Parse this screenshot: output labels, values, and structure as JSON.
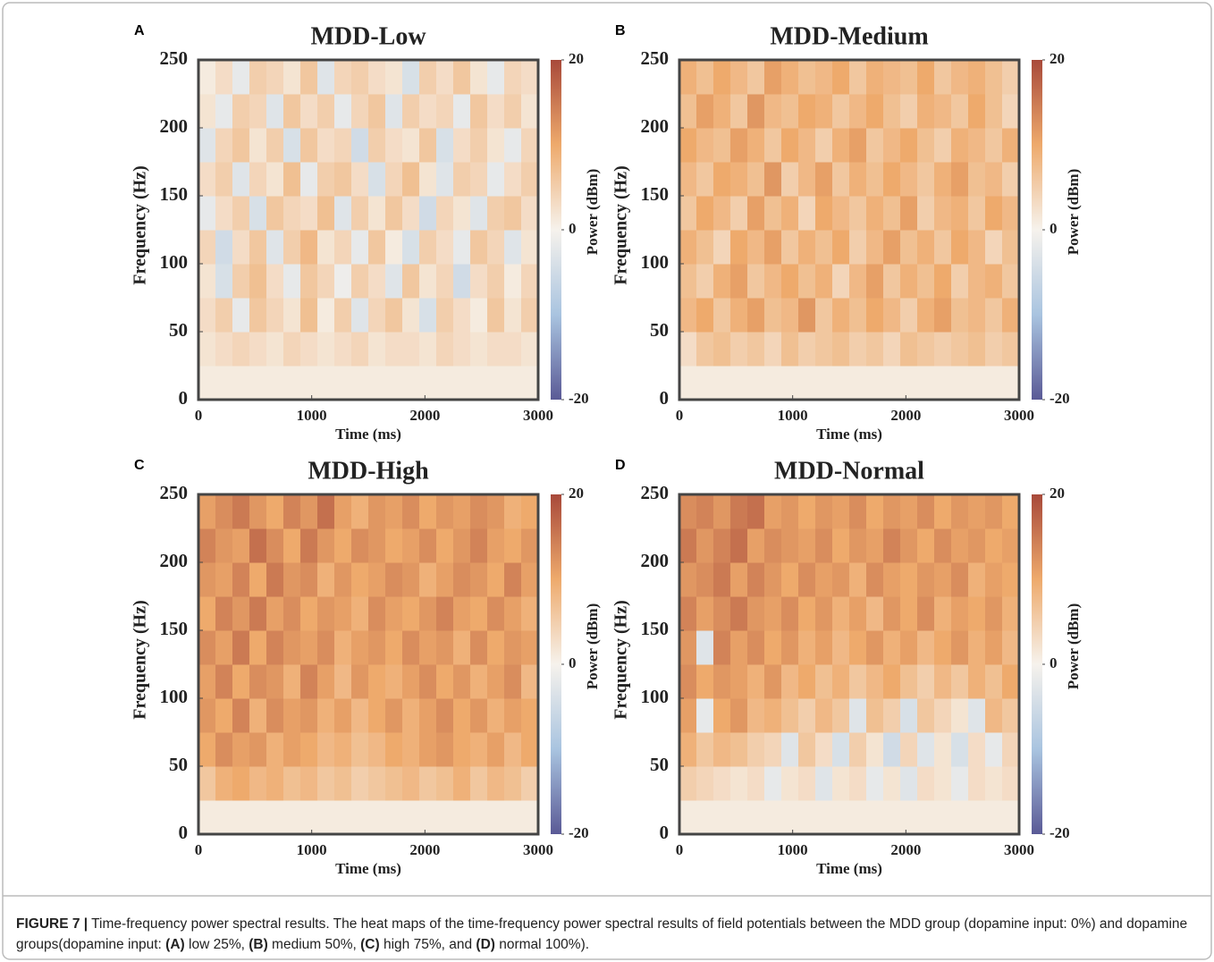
{
  "chart_data": [
    {
      "type": "heatmap",
      "panel": "A",
      "title": "MDD-Low",
      "x_label": "Time (ms)",
      "y_label": "Frequency (Hz)",
      "colorbar_label": "Power (dBm)",
      "xlim": [
        0,
        3000
      ],
      "ylim": [
        0,
        250
      ],
      "xticks": [
        0,
        1000,
        2000,
        3000
      ],
      "yticks": [
        0,
        50,
        100,
        150,
        200,
        250
      ],
      "clim": [
        -20,
        20
      ],
      "cticks": [
        -20,
        0,
        20
      ],
      "colormap": [
        "#5a5a96",
        "#a9c4e0",
        "#f6f2ec",
        "#eeaa6c",
        "#a8493a"
      ],
      "values": [
        [
          1,
          1,
          1,
          1,
          1,
          1,
          1,
          1,
          1,
          1,
          1,
          1,
          1,
          1,
          1,
          1,
          1,
          1,
          1,
          1
        ],
        [
          2,
          3,
          4,
          3,
          2,
          4,
          3,
          2,
          3,
          4,
          2,
          3,
          3,
          2,
          4,
          3,
          2,
          3,
          3,
          2
        ],
        [
          3,
          5,
          -2,
          6,
          4,
          2,
          7,
          1,
          5,
          -3,
          4,
          6,
          2,
          -4,
          5,
          3,
          1,
          6,
          2,
          5
        ],
        [
          2,
          -4,
          5,
          7,
          3,
          -2,
          6,
          4,
          -1,
          5,
          3,
          -3,
          6,
          2,
          4,
          -5,
          3,
          5,
          1,
          4
        ],
        [
          4,
          -5,
          3,
          6,
          -3,
          5,
          8,
          2,
          4,
          -2,
          6,
          1,
          -4,
          5,
          3,
          -2,
          6,
          4,
          -3,
          2
        ],
        [
          -2,
          3,
          5,
          -4,
          6,
          4,
          3,
          7,
          -3,
          5,
          2,
          6,
          3,
          -5,
          4,
          2,
          -3,
          5,
          6,
          3
        ],
        [
          3,
          5,
          -3,
          4,
          2,
          7,
          -2,
          5,
          6,
          3,
          -4,
          4,
          7,
          2,
          -3,
          5,
          4,
          -2,
          3,
          5
        ],
        [
          -3,
          4,
          6,
          2,
          5,
          -4,
          6,
          3,
          4,
          -5,
          5,
          3,
          2,
          6,
          -4,
          3,
          5,
          2,
          -2,
          4
        ],
        [
          2,
          -2,
          5,
          4,
          -3,
          6,
          3,
          5,
          -2,
          4,
          6,
          -3,
          5,
          3,
          4,
          -2,
          6,
          3,
          5,
          2
        ],
        [
          1,
          3,
          -2,
          5,
          4,
          2,
          6,
          -3,
          4,
          5,
          3,
          2,
          -4,
          5,
          3,
          6,
          2,
          -2,
          4,
          3
        ]
      ]
    },
    {
      "type": "heatmap",
      "panel": "B",
      "title": "MDD-Medium",
      "x_label": "Time (ms)",
      "y_label": "Frequency (Hz)",
      "colorbar_label": "Power (dBm)",
      "xlim": [
        0,
        3000
      ],
      "ylim": [
        0,
        250
      ],
      "xticks": [
        0,
        1000,
        2000,
        3000
      ],
      "yticks": [
        0,
        50,
        100,
        150,
        200,
        250
      ],
      "clim": [
        -20,
        20
      ],
      "cticks": [
        -20,
        0,
        20
      ],
      "colormap": [
        "#5a5a96",
        "#a9c4e0",
        "#f6f2ec",
        "#eeaa6c",
        "#a8493a"
      ],
      "values": [
        [
          1,
          1,
          1,
          1,
          1,
          1,
          1,
          1,
          1,
          1,
          1,
          1,
          1,
          1,
          1,
          1,
          1,
          1,
          1,
          1
        ],
        [
          3,
          6,
          7,
          5,
          6,
          4,
          7,
          5,
          6,
          7,
          5,
          6,
          4,
          7,
          6,
          5,
          6,
          7,
          5,
          6
        ],
        [
          8,
          10,
          6,
          9,
          11,
          7,
          8,
          12,
          6,
          9,
          7,
          10,
          8,
          5,
          9,
          11,
          7,
          8,
          6,
          9
        ],
        [
          7,
          5,
          9,
          11,
          6,
          8,
          10,
          7,
          9,
          4,
          8,
          11,
          6,
          9,
          7,
          10,
          5,
          8,
          9,
          6
        ],
        [
          9,
          7,
          4,
          10,
          8,
          11,
          6,
          9,
          7,
          10,
          5,
          8,
          11,
          7,
          9,
          6,
          10,
          8,
          4,
          7
        ],
        [
          6,
          10,
          8,
          5,
          11,
          7,
          9,
          4,
          10,
          8,
          6,
          9,
          7,
          11,
          5,
          8,
          9,
          6,
          10,
          8
        ],
        [
          8,
          6,
          10,
          9,
          7,
          12,
          5,
          8,
          11,
          6,
          9,
          7,
          10,
          8,
          6,
          9,
          11,
          7,
          8,
          5
        ],
        [
          10,
          8,
          7,
          11,
          9,
          6,
          10,
          8,
          5,
          9,
          11,
          6,
          8,
          10,
          7,
          5,
          9,
          8,
          6,
          9
        ],
        [
          7,
          11,
          9,
          6,
          12,
          8,
          7,
          10,
          9,
          6,
          8,
          10,
          7,
          5,
          9,
          8,
          6,
          10,
          7,
          4
        ],
        [
          9,
          7,
          10,
          8,
          6,
          11,
          9,
          7,
          8,
          10,
          6,
          9,
          8,
          7,
          10,
          6,
          8,
          9,
          7,
          5
        ]
      ]
    },
    {
      "type": "heatmap",
      "panel": "C",
      "title": "MDD-High",
      "x_label": "Time (ms)",
      "y_label": "Frequency (Hz)",
      "colorbar_label": "Power (dBm)",
      "xlim": [
        0,
        3000
      ],
      "ylim": [
        0,
        250
      ],
      "xticks": [
        0,
        1000,
        2000,
        3000
      ],
      "yticks": [
        0,
        50,
        100,
        150,
        200,
        250
      ],
      "clim": [
        -20,
        20
      ],
      "cticks": [
        -20,
        0,
        20
      ],
      "colormap": [
        "#5a5a96",
        "#a9c4e0",
        "#f6f2ec",
        "#eeaa6c",
        "#a8493a"
      ],
      "values": [
        [
          1,
          1,
          1,
          1,
          1,
          1,
          1,
          1,
          1,
          1,
          1,
          1,
          1,
          1,
          1,
          1,
          1,
          1,
          1,
          1
        ],
        [
          6,
          9,
          10,
          8,
          9,
          7,
          8,
          6,
          7,
          5,
          6,
          7,
          8,
          6,
          7,
          9,
          6,
          8,
          7,
          5
        ],
        [
          10,
          13,
          11,
          12,
          9,
          11,
          10,
          8,
          9,
          7,
          8,
          10,
          9,
          11,
          12,
          10,
          9,
          11,
          8,
          10
        ],
        [
          12,
          10,
          14,
          9,
          13,
          11,
          12,
          9,
          11,
          8,
          10,
          12,
          9,
          11,
          13,
          10,
          12,
          9,
          11,
          10
        ],
        [
          11,
          14,
          10,
          13,
          12,
          9,
          14,
          11,
          8,
          12,
          10,
          9,
          11,
          13,
          10,
          12,
          9,
          11,
          13,
          8
        ],
        [
          13,
          11,
          15,
          10,
          14,
          12,
          11,
          13,
          9,
          11,
          12,
          10,
          13,
          11,
          12,
          9,
          13,
          10,
          12,
          11
        ],
        [
          10,
          14,
          12,
          15,
          11,
          13,
          10,
          12,
          11,
          9,
          13,
          11,
          10,
          12,
          14,
          11,
          10,
          13,
          11,
          9
        ],
        [
          12,
          11,
          14,
          10,
          15,
          12,
          13,
          9,
          12,
          10,
          11,
          13,
          12,
          9,
          11,
          13,
          12,
          10,
          14,
          11
        ],
        [
          14,
          12,
          11,
          16,
          13,
          10,
          15,
          12,
          10,
          13,
          12,
          10,
          11,
          13,
          10,
          12,
          14,
          11,
          10,
          12
        ],
        [
          11,
          13,
          15,
          12,
          10,
          14,
          12,
          16,
          11,
          9,
          12,
          11,
          13,
          10,
          12,
          11,
          13,
          12,
          9,
          10
        ]
      ]
    },
    {
      "type": "heatmap",
      "panel": "D",
      "title": "MDD-Normal",
      "x_label": "Time (ms)",
      "y_label": "Frequency (Hz)",
      "colorbar_label": "Power (dBm)",
      "xlim": [
        0,
        3000
      ],
      "ylim": [
        0,
        250
      ],
      "xticks": [
        0,
        1000,
        2000,
        3000
      ],
      "yticks": [
        0,
        50,
        100,
        150,
        200,
        250
      ],
      "clim": [
        -20,
        20
      ],
      "cticks": [
        -20,
        0,
        20
      ],
      "colormap": [
        "#5a5a96",
        "#a9c4e0",
        "#f6f2ec",
        "#eeaa6c",
        "#a8493a"
      ],
      "values": [
        [
          1,
          1,
          1,
          1,
          1,
          1,
          1,
          1,
          1,
          1,
          1,
          1,
          1,
          1,
          1,
          1,
          1,
          1,
          1,
          1
        ],
        [
          5,
          4,
          3,
          2,
          3,
          -2,
          2,
          3,
          -3,
          2,
          3,
          -2,
          2,
          -3,
          3,
          2,
          -2,
          3,
          2,
          3
        ],
        [
          9,
          6,
          8,
          7,
          5,
          4,
          -3,
          6,
          3,
          -4,
          5,
          2,
          -5,
          4,
          -3,
          2,
          -4,
          3,
          -2,
          4
        ],
        [
          11,
          -2,
          10,
          12,
          8,
          9,
          7,
          5,
          8,
          6,
          -3,
          7,
          5,
          -4,
          6,
          4,
          2,
          -3,
          8,
          6
        ],
        [
          13,
          10,
          12,
          11,
          9,
          12,
          8,
          10,
          7,
          9,
          6,
          8,
          10,
          7,
          5,
          8,
          6,
          9,
          7,
          10
        ],
        [
          12,
          -3,
          14,
          11,
          13,
          10,
          12,
          9,
          11,
          8,
          10,
          12,
          9,
          11,
          8,
          10,
          12,
          9,
          11,
          8
        ],
        [
          14,
          11,
          13,
          15,
          12,
          11,
          13,
          10,
          12,
          9,
          11,
          8,
          12,
          10,
          13,
          9,
          11,
          10,
          12,
          9
        ],
        [
          12,
          13,
          15,
          11,
          14,
          12,
          10,
          13,
          11,
          12,
          9,
          13,
          11,
          10,
          12,
          11,
          13,
          9,
          11,
          10
        ],
        [
          15,
          12,
          14,
          16,
          11,
          13,
          12,
          11,
          13,
          10,
          12,
          11,
          14,
          12,
          10,
          13,
          11,
          12,
          10,
          11
        ],
        [
          13,
          14,
          12,
          15,
          16,
          11,
          12,
          10,
          12,
          11,
          13,
          10,
          12,
          11,
          13,
          10,
          12,
          11,
          12,
          10
        ]
      ]
    }
  ],
  "caption": {
    "parts": [
      "FIGURE 7 |",
      " Time-frequency power spectral results. The heat maps of the time-frequency power spectral results of field potentials between the MDD group (dopamine input: 0%) and dopamine groups(dopamine input: ",
      "(A)",
      " low 25%, ",
      "(B)",
      " medium 50%, ",
      "(C)",
      " high 75%, and ",
      "(D)",
      " normal 100%)."
    ]
  }
}
